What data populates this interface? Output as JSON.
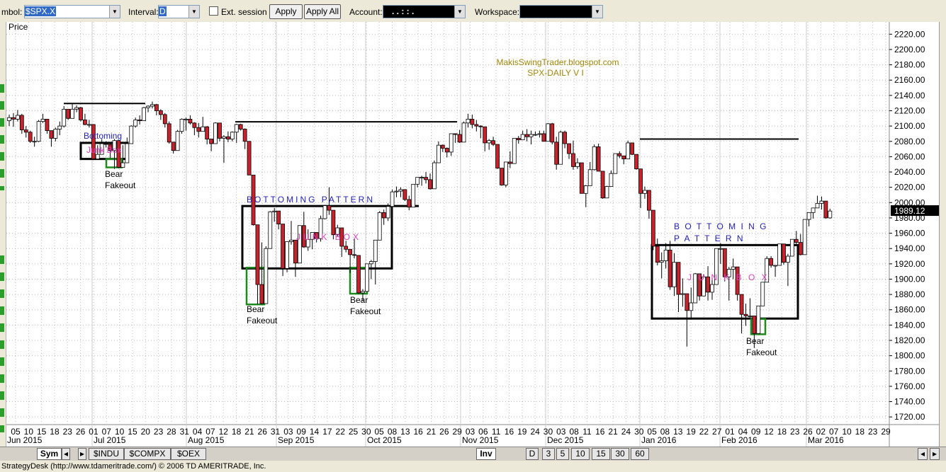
{
  "toolbar": {
    "symbol_label": "mbol:",
    "symbol": "$SPX.X",
    "interval_label": "Interval:",
    "interval": "D",
    "ext_session": "Ext. session",
    "apply": "Apply",
    "apply_all": "Apply All",
    "account_label": "Account:",
    "account": ". . : : .",
    "workspace_label": "Workspace:"
  },
  "chart_data": {
    "type": "candlestick",
    "y_axis_label": "Price",
    "up_color": "#ffffff",
    "down_color": "#c8232c",
    "grid": true,
    "ylim": [
      1710,
      2236
    ],
    "yticks": [
      {
        "value": 2220,
        "label": "2220.00"
      },
      {
        "value": 2200,
        "label": "2200.00"
      },
      {
        "value": 2180,
        "label": "2180.00"
      },
      {
        "value": 2160,
        "label": "2160.00"
      },
      {
        "value": 2140,
        "label": "2140.00"
      },
      {
        "value": 2120,
        "label": "2120.00"
      },
      {
        "value": 2100,
        "label": "2100.00"
      },
      {
        "value": 2080,
        "label": "2080.00"
      },
      {
        "value": 2060,
        "label": "2060.00"
      },
      {
        "value": 2040,
        "label": "2040.00"
      },
      {
        "value": 2020,
        "label": "2020.00"
      },
      {
        "value": 2000,
        "label": "2000.00"
      },
      {
        "value": 1980,
        "label": "1980.00"
      },
      {
        "value": 1960,
        "label": "1960.00"
      },
      {
        "value": 1940,
        "label": "1940.00"
      },
      {
        "value": 1920,
        "label": "1920.00"
      },
      {
        "value": 1900,
        "label": "1900.00"
      },
      {
        "value": 1880,
        "label": "1880.00"
      },
      {
        "value": 1860,
        "label": "1860.00"
      },
      {
        "value": 1840,
        "label": "1840.00"
      },
      {
        "value": 1820,
        "label": "1820.00"
      },
      {
        "value": 1800,
        "label": "1800.00"
      },
      {
        "value": 1780,
        "label": "1780.00"
      },
      {
        "value": 1760,
        "label": "1760.00"
      },
      {
        "value": 1740,
        "label": "1740.00"
      },
      {
        "value": 1720,
        "label": "1720.00"
      }
    ],
    "last_price": 1989.12,
    "x_day_labels": [
      "05",
      "10",
      "15",
      "18",
      "23",
      "26",
      "01",
      "07",
      "10",
      "15",
      "20",
      "23",
      "28",
      "31",
      "04",
      "07",
      "12",
      "18",
      "21",
      "26",
      "31",
      "03",
      "09",
      "14",
      "17",
      "22",
      "25",
      "30",
      "05",
      "08",
      "13",
      "16",
      "21",
      "26",
      "29",
      "03",
      "06",
      "11",
      "16",
      "19",
      "24",
      "30",
      "03",
      "08",
      "11",
      "16",
      "21",
      "24",
      "30",
      "05",
      "08",
      "13",
      "19",
      "22",
      "27",
      "01",
      "04",
      "09",
      "12",
      "18",
      "23",
      "26",
      "02",
      "07",
      "10",
      "18",
      "23",
      "29"
    ],
    "x_month_labels": [
      "Jun 2015",
      "Jul 2015",
      "Aug 2015",
      "Sep 2015",
      "Oct 2015",
      "Nov 2015",
      "Dec 2015",
      "Jan 2016",
      "Feb 2016",
      "Mar 2016"
    ],
    "ohlc": [
      [
        2107,
        2115,
        2100,
        2111
      ],
      [
        2111,
        2117,
        2099,
        2109
      ],
      [
        2109,
        2121,
        2106,
        2114
      ],
      [
        2114,
        2116,
        2090,
        2095
      ],
      [
        2095,
        2100,
        2085,
        2092
      ],
      [
        2092,
        2094,
        2078,
        2080
      ],
      [
        2080,
        2086,
        2073,
        2080
      ],
      [
        2080,
        2108,
        2079,
        2106
      ],
      [
        2106,
        2116,
        2104,
        2109
      ],
      [
        2109,
        2109,
        2090,
        2094
      ],
      [
        2094,
        2094,
        2073,
        2084
      ],
      [
        2084,
        2098,
        2080,
        2096
      ],
      [
        2096,
        2106,
        2088,
        2100
      ],
      [
        2100,
        2126,
        2098,
        2122
      ],
      [
        2122,
        2122,
        2108,
        2110
      ],
      [
        2110,
        2130,
        2110,
        2122
      ],
      [
        2122,
        2127,
        2118,
        2124
      ],
      [
        2124,
        2125,
        2106,
        2108
      ],
      [
        2108,
        2116,
        2101,
        2102
      ],
      [
        2102,
        2108,
        2098,
        2102
      ],
      [
        2102,
        2102,
        2056,
        2057
      ],
      [
        2057,
        2075,
        2056,
        2063
      ],
      [
        2063,
        2083,
        2063,
        2077
      ],
      [
        2077,
        2080,
        2072,
        2076
      ],
      [
        2076,
        2078,
        2058,
        2068
      ],
      [
        2068,
        2083,
        2044,
        2081
      ],
      [
        2081,
        2081,
        2045,
        2046
      ],
      [
        2046,
        2075,
        2046,
        2052
      ],
      [
        2052,
        2085,
        2052,
        2077
      ],
      [
        2077,
        2101,
        2077,
        2100
      ],
      [
        2100,
        2111,
        2098,
        2108
      ],
      [
        2108,
        2114,
        2102,
        2107
      ],
      [
        2107,
        2125,
        2107,
        2124
      ],
      [
        2124,
        2127,
        2118,
        2126
      ],
      [
        2126,
        2132,
        2123,
        2128
      ],
      [
        2128,
        2129,
        2114,
        2120
      ],
      [
        2120,
        2122,
        2108,
        2115
      ],
      [
        2115,
        2117,
        2098,
        2103
      ],
      [
        2103,
        2106,
        2077,
        2079
      ],
      [
        2079,
        2079,
        2064,
        2068
      ],
      [
        2068,
        2095,
        2068,
        2093
      ],
      [
        2093,
        2110,
        2090,
        2109
      ],
      [
        2109,
        2111,
        2094,
        2109
      ],
      [
        2109,
        2114,
        2102,
        2104
      ],
      [
        2104,
        2105,
        2088,
        2098
      ],
      [
        2098,
        2104,
        2085,
        2093
      ],
      [
        2093,
        2112,
        2093,
        2099
      ],
      [
        2099,
        2100,
        2076,
        2083
      ],
      [
        2083,
        2083,
        2067,
        2077
      ],
      [
        2077,
        2105,
        2077,
        2104
      ],
      [
        2104,
        2104,
        2080,
        2084
      ],
      [
        2084,
        2088,
        2052,
        2086
      ],
      [
        2086,
        2093,
        2079,
        2083
      ],
      [
        2083,
        2093,
        2080,
        2092
      ],
      [
        2092,
        2103,
        2078,
        2102
      ],
      [
        2102,
        2103,
        2094,
        2096
      ],
      [
        2096,
        2097,
        2070,
        2080
      ],
      [
        2080,
        2080,
        2036,
        2036
      ],
      [
        2036,
        2036,
        1970,
        1971
      ],
      [
        1971,
        1971,
        1867,
        1893
      ],
      [
        1893,
        1948,
        1867,
        1868
      ],
      [
        1868,
        1943,
        1868,
        1940
      ],
      [
        1940,
        1989,
        1940,
        1988
      ],
      [
        1988,
        1993,
        1975,
        1989
      ],
      [
        1989,
        1989,
        1965,
        1972
      ],
      [
        1972,
        1972,
        1904,
        1914
      ],
      [
        1914,
        1949,
        1909,
        1949
      ],
      [
        1949,
        1976,
        1945,
        1951
      ],
      [
        1951,
        1951,
        1903,
        1921
      ],
      [
        1921,
        1970,
        1921,
        1970
      ],
      [
        1970,
        1988,
        1941,
        1942
      ],
      [
        1942,
        1965,
        1937,
        1952
      ],
      [
        1952,
        1961,
        1939,
        1961
      ],
      [
        1961,
        1961,
        1948,
        1953
      ],
      [
        1953,
        1983,
        1949,
        1979
      ],
      [
        1979,
        1997,
        1978,
        1996
      ],
      [
        1996,
        2020,
        1984,
        1990
      ],
      [
        1990,
        1990,
        1952,
        1958
      ],
      [
        1958,
        1971,
        1956,
        1967
      ],
      [
        1967,
        1967,
        1929,
        1943
      ],
      [
        1943,
        1950,
        1935,
        1939
      ],
      [
        1939,
        1939,
        1908,
        1932
      ],
      [
        1932,
        1953,
        1927,
        1931
      ],
      [
        1931,
        1931,
        1881,
        1882
      ],
      [
        1882,
        1887,
        1871,
        1884
      ],
      [
        1884,
        1920,
        1884,
        1920
      ],
      [
        1920,
        1925,
        1900,
        1923
      ],
      [
        1923,
        1951,
        1893,
        1951
      ],
      [
        1951,
        1989,
        1951,
        1987
      ],
      [
        1987,
        1991,
        1971,
        1980
      ],
      [
        1980,
        1999,
        1976,
        1995
      ],
      [
        1995,
        2017,
        1987,
        2014
      ],
      [
        2014,
        2021,
        2007,
        2015
      ],
      [
        2015,
        2020,
        2007,
        2017
      ],
      [
        2017,
        2017,
        2002,
        2004
      ],
      [
        2004,
        2009,
        1990,
        1994
      ],
      [
        1994,
        2024,
        1994,
        2024
      ],
      [
        2024,
        2033,
        2020,
        2033
      ],
      [
        2033,
        2035,
        2022,
        2033
      ],
      [
        2033,
        2040,
        2025,
        2030
      ],
      [
        2030,
        2038,
        2017,
        2018
      ],
      [
        2018,
        2055,
        2018,
        2052
      ],
      [
        2052,
        2080,
        2052,
        2075
      ],
      [
        2075,
        2076,
        2066,
        2071
      ],
      [
        2071,
        2072,
        2059,
        2066
      ],
      [
        2066,
        2090,
        2061,
        2090
      ],
      [
        2090,
        2090,
        2078,
        2089
      ],
      [
        2089,
        2095,
        2078,
        2079
      ],
      [
        2079,
        2106,
        2079,
        2104
      ],
      [
        2104,
        2116,
        2098,
        2109
      ],
      [
        2109,
        2115,
        2097,
        2102
      ],
      [
        2102,
        2108,
        2093,
        2100
      ],
      [
        2100,
        2101,
        2084,
        2099
      ],
      [
        2099,
        2099,
        2067,
        2078
      ],
      [
        2078,
        2083,
        2069,
        2081
      ],
      [
        2081,
        2086,
        2074,
        2076
      ],
      [
        2076,
        2076,
        2044,
        2045
      ],
      [
        2045,
        2045,
        2022,
        2023
      ],
      [
        2023,
        2053,
        2020,
        2053
      ],
      [
        2053,
        2067,
        2045,
        2051
      ],
      [
        2051,
        2084,
        2051,
        2084
      ],
      [
        2084,
        2087,
        2077,
        2082
      ],
      [
        2082,
        2094,
        2082,
        2089
      ],
      [
        2089,
        2096,
        2080,
        2086
      ],
      [
        2086,
        2094,
        2076,
        2089
      ],
      [
        2089,
        2093,
        2087,
        2089
      ],
      [
        2089,
        2094,
        2085,
        2090
      ],
      [
        2090,
        2094,
        2080,
        2080
      ],
      [
        2080,
        2104,
        2080,
        2103
      ],
      [
        2103,
        2104,
        2076,
        2079
      ],
      [
        2079,
        2086,
        2043,
        2050
      ],
      [
        2050,
        2094,
        2050,
        2092
      ],
      [
        2092,
        2094,
        2071,
        2077
      ],
      [
        2077,
        2077,
        2057,
        2064
      ],
      [
        2064,
        2081,
        2043,
        2047
      ],
      [
        2047,
        2058,
        2044,
        2052
      ],
      [
        2052,
        2052,
        2012,
        2012
      ],
      [
        2012,
        2023,
        1994,
        2022
      ],
      [
        2022,
        2053,
        2022,
        2043
      ],
      [
        2043,
        2076,
        2042,
        2073
      ],
      [
        2073,
        2077,
        2041,
        2041
      ],
      [
        2041,
        2041,
        2005,
        2006
      ],
      [
        2006,
        2022,
        2006,
        2021
      ],
      [
        2021,
        2042,
        2021,
        2038
      ],
      [
        2038,
        2064,
        2038,
        2064
      ],
      [
        2064,
        2067,
        2058,
        2061
      ],
      [
        2061,
        2061,
        2050,
        2057
      ],
      [
        2057,
        2081,
        2057,
        2078
      ],
      [
        2078,
        2078,
        2062,
        2063
      ],
      [
        2063,
        2063,
        2043,
        2044
      ],
      [
        2044,
        2044,
        1993,
        2012
      ],
      [
        2012,
        2021,
        2005,
        2016
      ],
      [
        2016,
        2016,
        1979,
        1990
      ],
      [
        1990,
        1990,
        1938,
        1943
      ],
      [
        1943,
        1953,
        1918,
        1922
      ],
      [
        1922,
        1935,
        1901,
        1924
      ],
      [
        1924,
        1947,
        1914,
        1938
      ],
      [
        1938,
        1950,
        1886,
        1890
      ],
      [
        1890,
        1934,
        1878,
        1922
      ],
      [
        1922,
        1922,
        1857,
        1880
      ],
      [
        1880,
        1901,
        1864,
        1881
      ],
      [
        1881,
        1881,
        1812,
        1859
      ],
      [
        1859,
        1889,
        1848,
        1869
      ],
      [
        1869,
        1908,
        1869,
        1907
      ],
      [
        1907,
        1907,
        1872,
        1878
      ],
      [
        1878,
        1906,
        1878,
        1903
      ],
      [
        1903,
        1917,
        1872,
        1883
      ],
      [
        1883,
        1902,
        1873,
        1893
      ],
      [
        1893,
        1940,
        1893,
        1940
      ],
      [
        1940,
        1947,
        1920,
        1940
      ],
      [
        1940,
        1940,
        1897,
        1903
      ],
      [
        1903,
        1916,
        1872,
        1913
      ],
      [
        1913,
        1927,
        1900,
        1916
      ],
      [
        1916,
        1916,
        1872,
        1880
      ],
      [
        1880,
        1880,
        1829,
        1854
      ],
      [
        1854,
        1868,
        1839,
        1852
      ],
      [
        1852,
        1875,
        1850,
        1852
      ],
      [
        1852,
        1852,
        1810,
        1829
      ],
      [
        1829,
        1865,
        1829,
        1865
      ],
      [
        1865,
        1896,
        1865,
        1896
      ],
      [
        1896,
        1930,
        1896,
        1927
      ],
      [
        1927,
        1930,
        1915,
        1918
      ],
      [
        1918,
        1918,
        1903,
        1918
      ],
      [
        1918,
        1946,
        1918,
        1946
      ],
      [
        1946,
        1946,
        1919,
        1922
      ],
      [
        1922,
        1933,
        1891,
        1930
      ],
      [
        1930,
        1952,
        1930,
        1952
      ],
      [
        1952,
        1963,
        1945,
        1948
      ],
      [
        1948,
        1959,
        1931,
        1932
      ],
      [
        1932,
        1978,
        1932,
        1978
      ],
      [
        1978,
        1987,
        1969,
        1987
      ],
      [
        1987,
        1993,
        1979,
        1993
      ],
      [
        1993,
        2009,
        1993,
        1999
      ],
      [
        1999,
        2008,
        1991,
        2002
      ],
      [
        2002,
        2002,
        1979,
        1980
      ],
      [
        1980,
        1992,
        1979,
        1989
      ]
    ],
    "drawings": {
      "resistance_lines": [
        2129.5,
        2105.5,
        2083
      ],
      "boxes": [
        {
          "top": 2078,
          "bottom": 2057
        },
        {
          "top": 1995.5,
          "bottom": 1914
        },
        {
          "top": 1944.5,
          "bottom": 1848.5
        }
      ],
      "fakeouts": [
        {
          "top": 2057,
          "bottom": 2046
        },
        {
          "top": 1915,
          "bottom": 1867
        },
        {
          "top": 1915,
          "bottom": 1881
        },
        {
          "top": 1848,
          "bottom": 1828
        }
      ]
    },
    "annotations": {
      "watermark": "MakisSwingTrader.blogspot.com",
      "chart_name": "SPX-DAILY  V I",
      "bottoming_1": "Bottoming",
      "junk_box_1": "Junk Box",
      "bear_1": "Bear",
      "fakeout_1": "Fakeout",
      "bottoming_2": "BOTTOMING PATTERN",
      "junk_box_2": "JUNK BOX",
      "bear_2": "Bear",
      "fakeout_2": "Fakeout",
      "bear_3": "Bear",
      "fakeout_3": "Fakeout",
      "bottoming_3": "B O T T O M I N G",
      "pattern_3": "P A T T E R N",
      "junk_box_3": "J U N K   B O X",
      "bear_4": "Bear",
      "fakeout_4": "Fakeout"
    }
  },
  "bottom_bar": {
    "sym": "Sym",
    "tabs": [
      "$INDU",
      "$COMPX",
      "$OEX"
    ],
    "inv": "Inv",
    "intervals": [
      "D",
      "3",
      "5",
      "10",
      "15",
      "30",
      "60"
    ]
  },
  "status": "StrategyDesk (http://www.tdameritrade.com/) © 2006 TD AMERITRADE, Inc."
}
